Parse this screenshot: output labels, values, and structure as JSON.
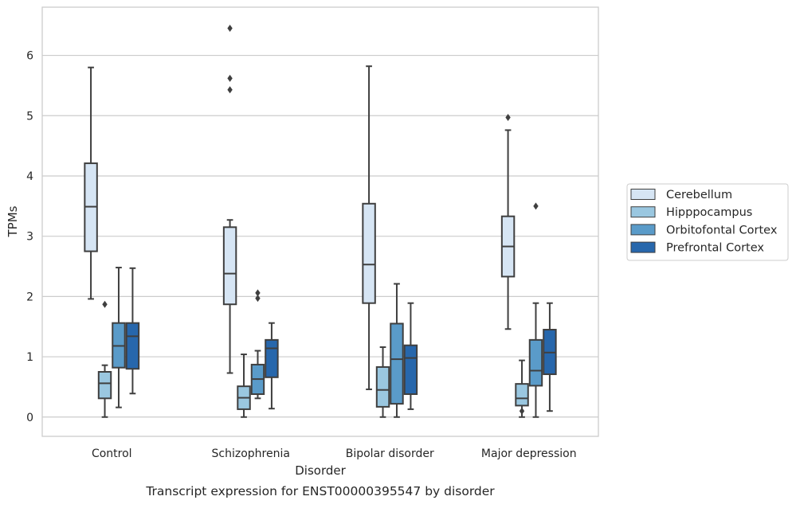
{
  "chart_data": {
    "type": "boxplot",
    "caption": "Transcript expression for ENST00000395547 by disorder",
    "xlabel": "Disorder",
    "ylabel": "TPMs",
    "ylim": [
      -0.32,
      6.8
    ],
    "yticks": [
      0,
      1,
      2,
      3,
      4,
      5,
      6
    ],
    "grid": "horizontal",
    "legend_position": "right",
    "categories": [
      "Control",
      "Schizophrenia",
      "Bipolar disorder",
      "Major depression"
    ],
    "series": [
      {
        "name": "Cerebellum",
        "color": "#d6e5f4",
        "boxes": [
          {
            "min": 1.96,
            "q1": 2.75,
            "median": 3.49,
            "q3": 4.21,
            "max": 5.8,
            "outliers": []
          },
          {
            "min": 0.73,
            "q1": 1.87,
            "median": 2.38,
            "q3": 3.15,
            "max": 3.27,
            "outliers": [
              6.45,
              5.62,
              5.43
            ]
          },
          {
            "min": 0.46,
            "q1": 1.89,
            "median": 2.53,
            "q3": 3.54,
            "max": 5.82,
            "outliers": []
          },
          {
            "min": 1.46,
            "q1": 2.33,
            "median": 2.83,
            "q3": 3.33,
            "max": 4.76,
            "outliers": [
              4.97
            ]
          }
        ]
      },
      {
        "name": "Hipppocampus",
        "color": "#9ac7e0",
        "boxes": [
          {
            "min": 0.0,
            "q1": 0.31,
            "median": 0.56,
            "q3": 0.75,
            "max": 0.86,
            "outliers": [
              1.87
            ]
          },
          {
            "min": 0.0,
            "q1": 0.13,
            "median": 0.32,
            "q3": 0.51,
            "max": 1.04,
            "outliers": []
          },
          {
            "min": 0.0,
            "q1": 0.17,
            "median": 0.45,
            "q3": 0.83,
            "max": 1.16,
            "outliers": []
          },
          {
            "min": 0.0,
            "q1": 0.19,
            "median": 0.31,
            "q3": 0.55,
            "max": 0.94,
            "outliers": [
              0.1
            ]
          }
        ]
      },
      {
        "name": "Orbitofontal Cortex",
        "color": "#5a9bc9",
        "boxes": [
          {
            "min": 0.16,
            "q1": 0.82,
            "median": 1.18,
            "q3": 1.56,
            "max": 2.48,
            "outliers": []
          },
          {
            "min": 0.31,
            "q1": 0.38,
            "median": 0.63,
            "q3": 0.87,
            "max": 1.1,
            "outliers": [
              2.06,
              1.97
            ]
          },
          {
            "min": 0.0,
            "q1": 0.22,
            "median": 0.96,
            "q3": 1.55,
            "max": 2.21,
            "outliers": []
          },
          {
            "min": 0.0,
            "q1": 0.52,
            "median": 0.77,
            "q3": 1.28,
            "max": 1.89,
            "outliers": [
              3.5
            ]
          }
        ]
      },
      {
        "name": "Prefrontal Cortex",
        "color": "#2767ac",
        "boxes": [
          {
            "min": 0.39,
            "q1": 0.8,
            "median": 1.34,
            "q3": 1.56,
            "max": 2.47,
            "outliers": []
          },
          {
            "min": 0.14,
            "q1": 0.66,
            "median": 1.14,
            "q3": 1.28,
            "max": 1.56,
            "outliers": []
          },
          {
            "min": 0.13,
            "q1": 0.38,
            "median": 0.98,
            "q3": 1.19,
            "max": 1.89,
            "outliers": []
          },
          {
            "min": 0.1,
            "q1": 0.71,
            "median": 1.07,
            "q3": 1.45,
            "max": 1.89,
            "outliers": []
          }
        ]
      }
    ]
  }
}
